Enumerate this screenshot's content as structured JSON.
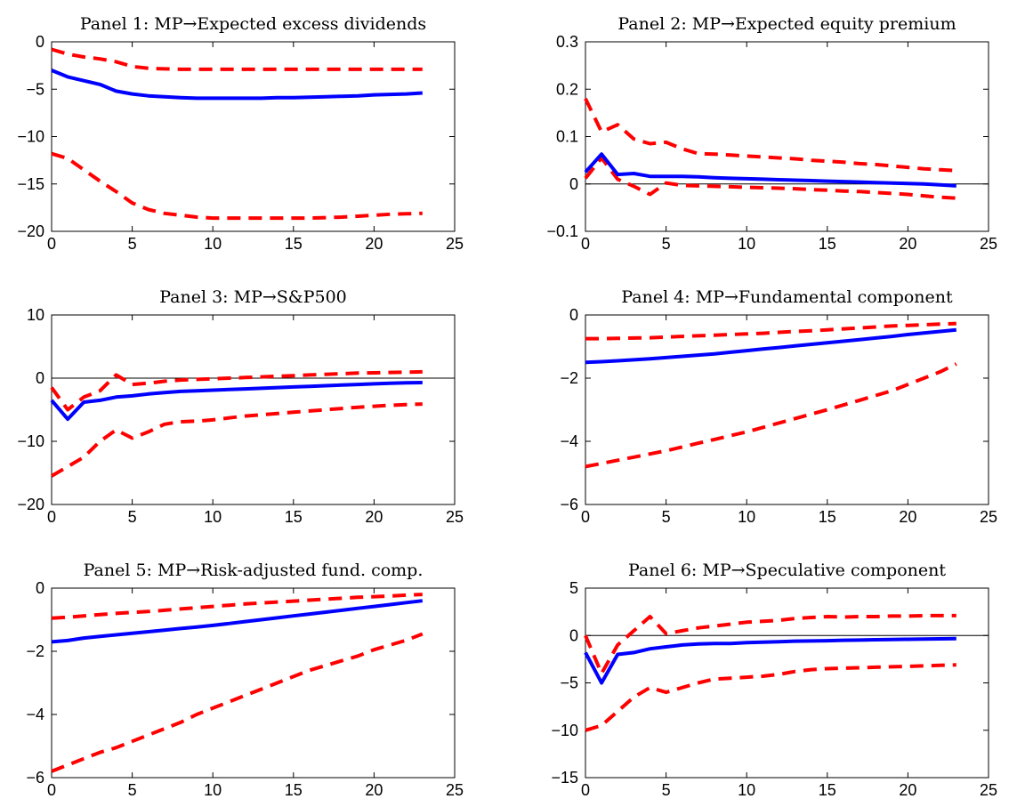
{
  "chart_data": [
    {
      "type": "line",
      "title": "Panel 1: MP→Expected excess dividends",
      "xlim": [
        0,
        25
      ],
      "ylim": [
        -20,
        0
      ],
      "xticks": [
        "0",
        "5",
        "10",
        "15",
        "20",
        "25"
      ],
      "yticks": [
        "−20",
        "−15",
        "−10",
        "−5",
        "0"
      ],
      "zero_line": false,
      "x": [
        0,
        1,
        2,
        3,
        4,
        5,
        6,
        7,
        8,
        9,
        10,
        11,
        12,
        13,
        14,
        15,
        16,
        17,
        18,
        19,
        20,
        21,
        22,
        23
      ],
      "series": [
        {
          "role": "median",
          "color": "#0000ff",
          "values": [
            -3.0,
            -3.7,
            -4.1,
            -4.5,
            -5.2,
            -5.5,
            -5.7,
            -5.8,
            -5.9,
            -5.95,
            -5.95,
            -5.95,
            -5.95,
            -5.95,
            -5.9,
            -5.9,
            -5.85,
            -5.8,
            -5.75,
            -5.7,
            -5.6,
            -5.55,
            -5.5,
            -5.4
          ]
        },
        {
          "role": "upper",
          "color": "#ff0000",
          "values": [
            -0.8,
            -1.3,
            -1.6,
            -1.8,
            -2.1,
            -2.6,
            -2.8,
            -2.85,
            -2.9,
            -2.9,
            -2.9,
            -2.9,
            -2.9,
            -2.9,
            -2.9,
            -2.9,
            -2.9,
            -2.9,
            -2.9,
            -2.9,
            -2.9,
            -2.9,
            -2.9,
            -2.9
          ]
        },
        {
          "role": "lower",
          "color": "#ff0000",
          "values": [
            -11.8,
            -12.3,
            -13.5,
            -14.7,
            -15.8,
            -17.0,
            -17.7,
            -18.1,
            -18.3,
            -18.5,
            -18.6,
            -18.6,
            -18.6,
            -18.6,
            -18.6,
            -18.6,
            -18.6,
            -18.55,
            -18.5,
            -18.4,
            -18.3,
            -18.2,
            -18.15,
            -18.1
          ]
        }
      ]
    },
    {
      "type": "line",
      "title": "Panel 2: MP→Expected equity premium",
      "xlim": [
        0,
        25
      ],
      "ylim": [
        -0.1,
        0.3
      ],
      "xticks": [
        "0",
        "5",
        "10",
        "15",
        "20",
        "25"
      ],
      "yticks": [
        "−0.1",
        "0",
        "0.1",
        "0.2",
        "0.3"
      ],
      "zero_line": true,
      "x": [
        0,
        1,
        2,
        3,
        4,
        5,
        6,
        7,
        8,
        9,
        10,
        11,
        12,
        13,
        14,
        15,
        16,
        17,
        18,
        19,
        20,
        21,
        22,
        23
      ],
      "series": [
        {
          "role": "median",
          "color": "#0000ff",
          "values": [
            0.025,
            0.063,
            0.02,
            0.022,
            0.016,
            0.016,
            0.016,
            0.015,
            0.013,
            0.012,
            0.011,
            0.01,
            0.009,
            0.008,
            0.007,
            0.006,
            0.005,
            0.004,
            0.003,
            0.002,
            0.001,
            0.0,
            -0.002,
            -0.004
          ]
        },
        {
          "role": "upper",
          "color": "#ff0000",
          "values": [
            0.18,
            0.11,
            0.125,
            0.095,
            0.085,
            0.088,
            0.074,
            0.064,
            0.063,
            0.061,
            0.059,
            0.057,
            0.055,
            0.053,
            0.05,
            0.048,
            0.046,
            0.043,
            0.041,
            0.038,
            0.035,
            0.032,
            0.03,
            0.028
          ]
        },
        {
          "role": "lower",
          "color": "#ff0000",
          "values": [
            0.012,
            0.055,
            0.01,
            -0.005,
            -0.022,
            0.002,
            -0.003,
            -0.004,
            -0.005,
            -0.006,
            -0.007,
            -0.008,
            -0.009,
            -0.01,
            -0.012,
            -0.013,
            -0.015,
            -0.016,
            -0.018,
            -0.02,
            -0.022,
            -0.025,
            -0.028,
            -0.03
          ]
        }
      ]
    },
    {
      "type": "line",
      "title": "Panel 3: MP→S&P500",
      "xlim": [
        0,
        25
      ],
      "ylim": [
        -20,
        10
      ],
      "xticks": [
        "0",
        "5",
        "10",
        "15",
        "20",
        "25"
      ],
      "yticks": [
        "−20",
        "−10",
        "0",
        "10"
      ],
      "zero_line": true,
      "x": [
        0,
        1,
        2,
        3,
        4,
        5,
        6,
        7,
        8,
        9,
        10,
        11,
        12,
        13,
        14,
        15,
        16,
        17,
        18,
        19,
        20,
        21,
        22,
        23
      ],
      "series": [
        {
          "role": "median",
          "color": "#0000ff",
          "values": [
            -3.5,
            -6.5,
            -3.8,
            -3.5,
            -3.0,
            -2.8,
            -2.5,
            -2.3,
            -2.1,
            -2.0,
            -1.9,
            -1.8,
            -1.7,
            -1.6,
            -1.5,
            -1.4,
            -1.3,
            -1.2,
            -1.1,
            -1.0,
            -0.9,
            -0.8,
            -0.75,
            -0.7
          ]
        },
        {
          "role": "upper",
          "color": "#ff0000",
          "values": [
            -1.5,
            -5.0,
            -3.0,
            -2.0,
            0.5,
            -1.0,
            -0.8,
            -0.5,
            -0.3,
            -0.2,
            -0.1,
            0.0,
            0.1,
            0.2,
            0.3,
            0.4,
            0.5,
            0.6,
            0.7,
            0.8,
            0.85,
            0.9,
            0.95,
            1.0
          ]
        },
        {
          "role": "lower",
          "color": "#ff0000",
          "values": [
            -15.5,
            -14.0,
            -12.5,
            -10.0,
            -8.2,
            -9.5,
            -8.5,
            -7.3,
            -6.9,
            -6.8,
            -6.6,
            -6.3,
            -6.0,
            -5.8,
            -5.6,
            -5.4,
            -5.2,
            -5.0,
            -4.8,
            -4.6,
            -4.45,
            -4.3,
            -4.2,
            -4.1
          ]
        }
      ]
    },
    {
      "type": "line",
      "title": "Panel 4: MP→Fundamental component",
      "xlim": [
        0,
        25
      ],
      "ylim": [
        -6,
        0
      ],
      "xticks": [
        "0",
        "5",
        "10",
        "15",
        "20",
        "25"
      ],
      "yticks": [
        "−6",
        "−4",
        "−2",
        "0"
      ],
      "zero_line": false,
      "x": [
        0,
        1,
        2,
        3,
        4,
        5,
        6,
        7,
        8,
        9,
        10,
        11,
        12,
        13,
        14,
        15,
        16,
        17,
        18,
        19,
        20,
        21,
        22,
        23
      ],
      "series": [
        {
          "role": "median",
          "color": "#0000ff",
          "values": [
            -1.5,
            -1.48,
            -1.45,
            -1.42,
            -1.39,
            -1.35,
            -1.31,
            -1.27,
            -1.23,
            -1.18,
            -1.13,
            -1.08,
            -1.03,
            -0.98,
            -0.93,
            -0.88,
            -0.83,
            -0.78,
            -0.73,
            -0.68,
            -0.62,
            -0.57,
            -0.52,
            -0.47
          ]
        },
        {
          "role": "upper",
          "color": "#ff0000",
          "values": [
            -0.75,
            -0.75,
            -0.74,
            -0.73,
            -0.72,
            -0.7,
            -0.68,
            -0.66,
            -0.64,
            -0.62,
            -0.6,
            -0.58,
            -0.55,
            -0.52,
            -0.5,
            -0.47,
            -0.44,
            -0.41,
            -0.38,
            -0.35,
            -0.33,
            -0.31,
            -0.29,
            -0.27
          ]
        },
        {
          "role": "lower",
          "color": "#ff0000",
          "values": [
            -4.8,
            -4.7,
            -4.6,
            -4.5,
            -4.4,
            -4.3,
            -4.18,
            -4.06,
            -3.94,
            -3.82,
            -3.7,
            -3.56,
            -3.42,
            -3.28,
            -3.14,
            -3.0,
            -2.85,
            -2.7,
            -2.55,
            -2.4,
            -2.2,
            -2.0,
            -1.8,
            -1.55
          ]
        }
      ]
    },
    {
      "type": "line",
      "title": "Panel 5: MP→Risk-adjusted fund. comp.",
      "xlim": [
        0,
        25
      ],
      "ylim": [
        -6,
        0
      ],
      "xticks": [
        "0",
        "5",
        "10",
        "15",
        "20",
        "25"
      ],
      "yticks": [
        "−6",
        "−4",
        "−2",
        "0"
      ],
      "zero_line": false,
      "x": [
        0,
        1,
        2,
        3,
        4,
        5,
        6,
        7,
        8,
        9,
        10,
        11,
        12,
        13,
        14,
        15,
        16,
        17,
        18,
        19,
        20,
        21,
        22,
        23
      ],
      "series": [
        {
          "role": "median",
          "color": "#0000ff",
          "values": [
            -1.7,
            -1.66,
            -1.58,
            -1.53,
            -1.48,
            -1.43,
            -1.38,
            -1.33,
            -1.28,
            -1.23,
            -1.18,
            -1.12,
            -1.06,
            -1.0,
            -0.94,
            -0.88,
            -0.82,
            -0.76,
            -0.7,
            -0.64,
            -0.58,
            -0.52,
            -0.46,
            -0.4
          ]
        },
        {
          "role": "upper",
          "color": "#ff0000",
          "values": [
            -0.95,
            -0.92,
            -0.88,
            -0.84,
            -0.8,
            -0.77,
            -0.74,
            -0.7,
            -0.66,
            -0.62,
            -0.58,
            -0.54,
            -0.5,
            -0.47,
            -0.44,
            -0.41,
            -0.38,
            -0.35,
            -0.32,
            -0.29,
            -0.27,
            -0.25,
            -0.22,
            -0.2
          ]
        },
        {
          "role": "lower",
          "color": "#ff0000",
          "values": [
            -5.8,
            -5.6,
            -5.4,
            -5.2,
            -5.05,
            -4.85,
            -4.65,
            -4.45,
            -4.25,
            -4.0,
            -3.8,
            -3.6,
            -3.4,
            -3.2,
            -3.0,
            -2.8,
            -2.6,
            -2.45,
            -2.3,
            -2.15,
            -1.95,
            -1.8,
            -1.65,
            -1.45
          ]
        }
      ]
    },
    {
      "type": "line",
      "title": "Panel 6: MP→Speculative component",
      "xlim": [
        0,
        25
      ],
      "ylim": [
        -15,
        5
      ],
      "xticks": [
        "0",
        "5",
        "10",
        "15",
        "20",
        "25"
      ],
      "yticks": [
        "−15",
        "−10",
        "−5",
        "0",
        "5"
      ],
      "zero_line": true,
      "x": [
        0,
        1,
        2,
        3,
        4,
        5,
        6,
        7,
        8,
        9,
        10,
        11,
        12,
        13,
        14,
        15,
        16,
        17,
        18,
        19,
        20,
        21,
        22,
        23
      ],
      "series": [
        {
          "role": "median",
          "color": "#0000ff",
          "values": [
            -1.8,
            -5.0,
            -2.0,
            -1.8,
            -1.4,
            -1.2,
            -1.0,
            -0.9,
            -0.85,
            -0.85,
            -0.75,
            -0.7,
            -0.65,
            -0.6,
            -0.58,
            -0.55,
            -0.5,
            -0.48,
            -0.45,
            -0.42,
            -0.4,
            -0.38,
            -0.35,
            -0.33
          ]
        },
        {
          "role": "upper",
          "color": "#ff0000",
          "values": [
            0.0,
            -4.0,
            -1.0,
            0.5,
            2.0,
            0.2,
            0.5,
            0.8,
            1.0,
            1.2,
            1.4,
            1.5,
            1.6,
            1.8,
            1.9,
            2.0,
            1.95,
            2.0,
            2.0,
            2.05,
            2.05,
            2.1,
            2.1,
            2.1
          ]
        },
        {
          "role": "lower",
          "color": "#ff0000",
          "values": [
            -10.0,
            -9.5,
            -8.0,
            -6.5,
            -5.5,
            -6.0,
            -5.5,
            -5.0,
            -4.6,
            -4.5,
            -4.4,
            -4.3,
            -4.1,
            -3.8,
            -3.6,
            -3.5,
            -3.45,
            -3.4,
            -3.35,
            -3.3,
            -3.25,
            -3.2,
            -3.15,
            -3.1
          ]
        }
      ]
    }
  ]
}
